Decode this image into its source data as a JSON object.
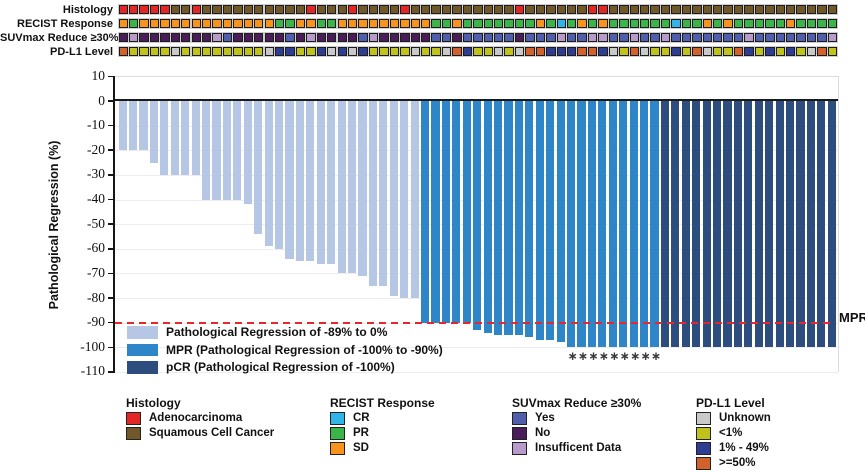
{
  "tracks": {
    "rows": [
      {
        "label": "Histology",
        "key": "histology",
        "codes": [
          "ADC",
          "ADC",
          "ADC",
          "ADC",
          "ADC",
          "SCC",
          "SCC",
          "ADC",
          "SCC",
          "SCC",
          "SCC",
          "SCC",
          "SCC",
          "SCC",
          "SCC",
          "SCC",
          "SCC",
          "SCC",
          "ADC",
          "SCC",
          "SCC",
          "SCC",
          "ADC",
          "SCC",
          "SCC",
          "SCC",
          "SCC",
          "ADC",
          "SCC",
          "SCC",
          "SCC",
          "SCC",
          "SCC",
          "SCC",
          "SCC",
          "SCC",
          "SCC",
          "SCC",
          "ADC",
          "SCC",
          "SCC",
          "SCC",
          "SCC",
          "SCC",
          "SCC",
          "ADC",
          "ADC",
          "SCC",
          "SCC",
          "SCC",
          "SCC",
          "SCC",
          "SCC",
          "SCC",
          "SCC",
          "SCC",
          "SCC",
          "SCC",
          "SCC",
          "SCC",
          "SCC",
          "SCC",
          "SCC",
          "SCC",
          "SCC",
          "SCC",
          "SCC",
          "SCC",
          "SCC"
        ]
      },
      {
        "label": "RECIST Response",
        "key": "recist",
        "codes": [
          "SD",
          "PR",
          "SD",
          "SD",
          "SD",
          "SD",
          "SD",
          "SD",
          "SD",
          "SD",
          "SD",
          "SD",
          "SD",
          "SD",
          "SD",
          "PR",
          "PR",
          "SD",
          "SD",
          "PR",
          "PR",
          "SD",
          "SD",
          "SD",
          "SD",
          "SD",
          "SD",
          "SD",
          "SD",
          "SD",
          "PR",
          "PR",
          "SD",
          "PR",
          "PR",
          "PR",
          "PR",
          "PR",
          "PR",
          "PR",
          "SD",
          "PR",
          "CR",
          "PR",
          "SD",
          "PR",
          "SD",
          "PR",
          "PR",
          "PR",
          "PR",
          "PR",
          "PR",
          "CR",
          "PR",
          "PR",
          "SD",
          "PR",
          "SD",
          "PR",
          "PR",
          "PR",
          "PR",
          "PR",
          "SD",
          "PR",
          "PR",
          "PR",
          "PR"
        ]
      },
      {
        "label": "SUVmax Reduce ≥30%",
        "key": "suvmax",
        "codes": [
          "No",
          "ID",
          "No",
          "No",
          "No",
          "No",
          "No",
          "No",
          "No",
          "ID",
          "Yes",
          "No",
          "No",
          "No",
          "No",
          "No",
          "Yes",
          "No",
          "ID",
          "No",
          "No",
          "No",
          "No",
          "Yes",
          "ID",
          "No",
          "No",
          "No",
          "No",
          "No",
          "Yes",
          "Yes",
          "No",
          "Yes",
          "Yes",
          "Yes",
          "Yes",
          "Yes",
          "No",
          "Yes",
          "Yes",
          "Yes",
          "ID",
          "Yes",
          "Yes",
          "ID",
          "ID",
          "Yes",
          "Yes",
          "ID",
          "Yes",
          "Yes",
          "ID",
          "Yes",
          "Yes",
          "Yes",
          "Yes",
          "Yes",
          "Yes",
          "Yes",
          "ID",
          "Yes",
          "Yes",
          "Yes",
          "Yes",
          "Yes",
          "Yes",
          "Yes",
          "ID"
        ]
      },
      {
        "label": "PD-L1 Level",
        "key": "pdl1",
        "codes": [
          ">=50%",
          "<1%",
          "<1%",
          "<1%",
          "<1%",
          "Unknown",
          "<1%",
          "<1%",
          "<1%",
          "<1%",
          "<1%",
          "<1%",
          "<1%",
          "<1%",
          "Unknown",
          "1-49%",
          "1-49%",
          "<1%",
          "<1%",
          "1-49%",
          "Unknown",
          "1-49%",
          "Unknown",
          "1-49%",
          "<1%",
          "<1%",
          "<1%",
          "<1%",
          "Unknown",
          "<1%",
          "<1%",
          "Unknown",
          ">=50%",
          "1-49%",
          "<1%",
          "<1%",
          "Unknown",
          "<1%",
          "Unknown",
          ">=50%",
          ">=50%",
          "1-49%",
          "1-49%",
          "1-49%",
          ">=50%",
          ">=50%",
          "1-49%",
          "Unknown",
          "<1%",
          ">=50%",
          "Unknown",
          "<1%",
          "<1%",
          "1-49%",
          "<1%",
          ">=50%",
          "Unknown",
          "<1%",
          "<1%",
          ">=50%",
          "1-49%",
          "<1%",
          "1-49%",
          "<1%",
          "1-49%",
          "<1%",
          "Unknown",
          ">=50%",
          "<1%"
        ]
      }
    ],
    "palette": {
      "histology": {
        "ADC": "#e32726",
        "SCC": "#71582b"
      },
      "recist": {
        "CR": "#30b5e8",
        "PR": "#3bb54a",
        "SD": "#f7941e"
      },
      "suvmax": {
        "Yes": "#4f5fae",
        "No": "#4a1d5a",
        "ID": "#b99bcb"
      },
      "pdl1": {
        "Unknown": "#c9c9c9",
        "<1%": "#bfc31c",
        "1-49%": "#2e3d92",
        ">=50%": "#d2622d"
      }
    }
  },
  "chart_data": {
    "type": "bar",
    "title": "",
    "xlabel": "",
    "ylabel": "Pathological Regression (%)",
    "ylim": [
      -110,
      10
    ],
    "yticks": [
      10,
      0,
      -10,
      -20,
      -30,
      -40,
      -50,
      -60,
      -70,
      -80,
      -90,
      -100,
      -110
    ],
    "grid": true,
    "values": [
      -20,
      -20,
      -20,
      -25,
      -30,
      -30,
      -30,
      -30,
      -40,
      -40,
      -40,
      -40,
      -42,
      -54,
      -59,
      -60,
      -64,
      -65,
      -65,
      -66,
      -66,
      -70,
      -70,
      -71,
      -75,
      -75,
      -79,
      -80,
      -80,
      -90,
      -90,
      -90,
      -90,
      -90,
      -93,
      -94,
      -95,
      -95,
      -95,
      -96,
      -97,
      -97,
      -98,
      -100,
      -100,
      -100,
      -100,
      -100,
      -100,
      -100,
      -100,
      -100,
      -100,
      -100,
      -100,
      -100,
      -100,
      -100,
      -100,
      -100,
      -100,
      -100,
      -100,
      -100,
      -100,
      -100,
      -100,
      -100,
      -100
    ],
    "segments": [
      {
        "name": "Pathological Regression of -89% to 0%",
        "count": 29,
        "color": "#b5c7e5"
      },
      {
        "name": "MPR (Pathological Regression of -100% to -90%)",
        "count": 23,
        "color": "#2e86c8"
      },
      {
        "name": "pCR (Pathological Regression of -100%)",
        "count": 17,
        "color": "#2c4d7d"
      }
    ],
    "mpr_line": {
      "y": -90,
      "label": "MPR",
      "color": "#e8262b"
    },
    "asterisk_bar_indices": [
      43,
      44,
      45,
      46,
      47,
      48,
      49,
      50,
      51
    ],
    "asterisk_glyph": "∗"
  },
  "inplot_legend": [
    {
      "label": "Pathological Regression of -89% to 0%",
      "color": "#b5c7e5"
    },
    {
      "label": "MPR (Pathological Regression of -100% to -90%)",
      "color": "#2e86c8"
    },
    {
      "label": "pCR (Pathological Regression of -100%)",
      "color": "#2c4d7d"
    }
  ],
  "bottom_legends": [
    {
      "title": "Histology",
      "items": [
        {
          "label": "Adenocarcinoma",
          "color": "#e32726"
        },
        {
          "label": "Squamous Cell Cancer",
          "color": "#71582b"
        }
      ]
    },
    {
      "title": "RECIST Response",
      "items": [
        {
          "label": "CR",
          "color": "#30b5e8"
        },
        {
          "label": "PR",
          "color": "#3bb54a"
        },
        {
          "label": "SD",
          "color": "#f7941e"
        }
      ]
    },
    {
      "title": "SUVmax Reduce ≥30%",
      "items": [
        {
          "label": "Yes",
          "color": "#4f5fae"
        },
        {
          "label": "No",
          "color": "#4a1d5a"
        },
        {
          "label": "Insufficent Data",
          "color": "#b99bcb"
        }
      ]
    },
    {
      "title": "PD-L1 Level",
      "items": [
        {
          "label": "Unknown",
          "color": "#c9c9c9"
        },
        {
          "label": "<1%",
          "color": "#bfc31c"
        },
        {
          "label": "1% - 49%",
          "color": "#2e3d92"
        },
        {
          "label": ">=50%",
          "color": "#d2622d"
        }
      ]
    }
  ]
}
